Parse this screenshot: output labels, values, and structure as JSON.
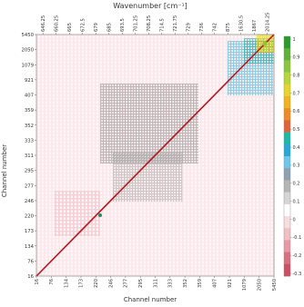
{
  "chart_data": {
    "type": "heatmap",
    "title": "",
    "xlabel_top": "Wavenumber [cm⁻¹]",
    "ylabel": "Channel number",
    "xlabel_bottom": "Channel number",
    "top_tick_labels": [
      "646.25",
      "660.25",
      "665",
      "672.5",
      "679",
      "685",
      "693.5",
      "701.25",
      "708.25",
      "714.5",
      "721.75",
      "729",
      "736",
      "742",
      "875",
      "1630.5",
      "1867",
      "2014.25"
    ],
    "channel_ticks": [
      16,
      76,
      134,
      173,
      220,
      246,
      277,
      295,
      311,
      333,
      352,
      359,
      407,
      921,
      1079,
      2050,
      5450
    ],
    "colorbar_ticks": [
      1,
      0.9,
      0.8,
      0.7,
      0.6,
      0.5,
      0.4,
      0.3,
      0.2,
      0.1,
      0,
      -0.1,
      -0.2,
      -0.3
    ],
    "colorbar_colors": [
      "#2a9a2a",
      "#5fb13a",
      "#8cc63f",
      "#b7d63a",
      "#e6d52a",
      "#f2b41e",
      "#ee8b24",
      "#e0643a",
      "#1fb7a8",
      "#29a6d6",
      "#6fc6ea",
      "#8fa0b0",
      "#b5b5b5",
      "#d6d6d6",
      "#ffffff",
      "#f7dede",
      "#f0c0c5",
      "#e79aa5",
      "#d97080",
      "#cd4f63"
    ],
    "diagonal_value": 1.0,
    "blocks": [
      {
        "name": "upper-right correlation block",
        "value": 0.5
      },
      {
        "name": "mid gray correlation block",
        "value": -0.15
      },
      {
        "name": "lower gray correlation block",
        "value": -0.15
      }
    ]
  }
}
